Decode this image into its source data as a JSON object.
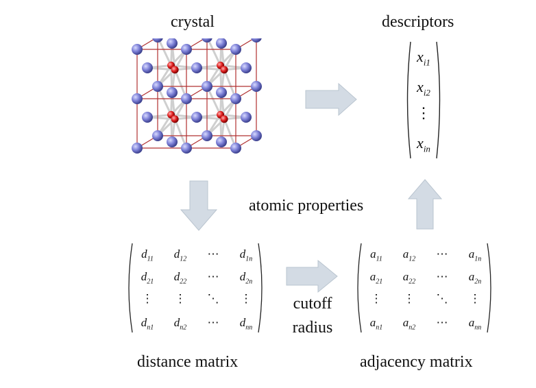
{
  "labels": {
    "crystal": "crystal",
    "descriptors": "descriptors",
    "atomic_properties": "atomic properties",
    "cutoff_line1": "cutoff",
    "cutoff_line2": "radius",
    "distance_matrix": "distance matrix",
    "adjacency_matrix": "adjacency matrix"
  },
  "descriptor_vector": {
    "symbol": "x",
    "subscripts": [
      "i1",
      "i2",
      "in"
    ],
    "vdots": "⋮"
  },
  "distance_matrix": {
    "rows": [
      [
        [
          "d",
          "11"
        ],
        [
          "d",
          "12"
        ],
        [
          "⋯",
          ""
        ],
        [
          "d",
          "1n"
        ]
      ],
      [
        [
          "d",
          "21"
        ],
        [
          "d",
          "22"
        ],
        [
          "⋯",
          ""
        ],
        [
          "d",
          "2n"
        ]
      ],
      [
        [
          "⋮",
          ""
        ],
        [
          "⋮",
          ""
        ],
        [
          "⋱",
          ""
        ],
        [
          "⋮",
          ""
        ]
      ],
      [
        [
          "d",
          "n1"
        ],
        [
          "d",
          "n2"
        ],
        [
          "⋯",
          ""
        ],
        [
          "d",
          "nn"
        ]
      ]
    ]
  },
  "adjacency_matrix": {
    "rows": [
      [
        [
          "a",
          "11"
        ],
        [
          "a",
          "12"
        ],
        [
          "⋯",
          ""
        ],
        [
          "a",
          "1n"
        ]
      ],
      [
        [
          "a",
          "21"
        ],
        [
          "a",
          "22"
        ],
        [
          "⋯",
          ""
        ],
        [
          "a",
          "2n"
        ]
      ],
      [
        [
          "⋮",
          ""
        ],
        [
          "⋮",
          ""
        ],
        [
          "⋱",
          ""
        ],
        [
          "⋮",
          ""
        ]
      ],
      [
        [
          "a",
          "n1"
        ],
        [
          "a",
          "n2"
        ],
        [
          "⋯",
          ""
        ],
        [
          "a",
          "nn"
        ]
      ]
    ]
  },
  "colors": {
    "arrow_fill": "#d3dbe4",
    "arrow_stroke": "#b9c4cf",
    "atom_blue": "#7b7fd6",
    "atom_red": "#e02020",
    "cell_edge": "#b03030",
    "bond": "#cfcfcf"
  },
  "icons": {
    "crystal_structure": "crystal-structure-icon"
  }
}
